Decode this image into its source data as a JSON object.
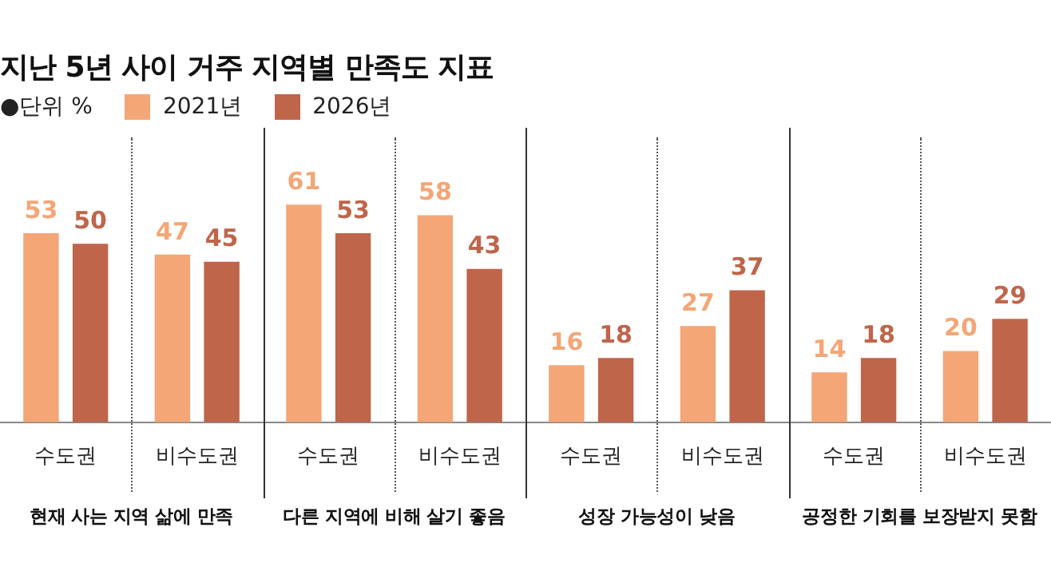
{
  "chart_data": {
    "type": "bar",
    "title": "지난 5년 사이 거주 지역별 만족도 지표",
    "categories": [
      "수도권",
      "비수도권",
      "수도권",
      "비수도권",
      "수도권",
      "비수도권",
      "수도권",
      "비수도권"
    ],
    "series": [
      {
        "name": "2021년",
        "color": "#f4a676",
        "values": [
          53,
          47,
          61,
          58,
          16,
          27,
          14,
          20
        ]
      },
      {
        "name": "2026년",
        "color": "#bf654a",
        "values": [
          50,
          45,
          53,
          43,
          18,
          37,
          18,
          29
        ]
      }
    ],
    "data_labels": true,
    "legend": "top left",
    "grid": false,
    "annotations": [
      "●단위 %",
      "현재 사는 지역 삶에 만족",
      "다른 지역에 비해 살기 좋음",
      "성장 가능성이 낮음",
      "공정한 기회를 보장받지 못함"
    ]
  }
}
